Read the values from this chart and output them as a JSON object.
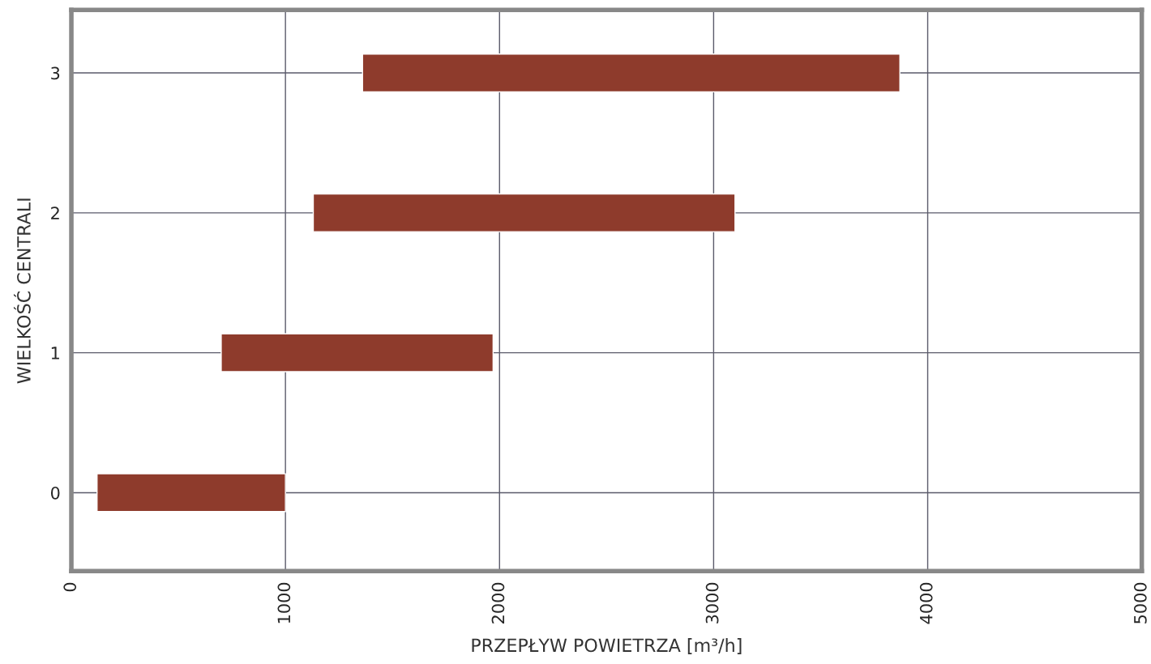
{
  "chart_data": {
    "type": "bar",
    "orientation": "horizontal",
    "categories": [
      "3",
      "2",
      "1",
      "0"
    ],
    "base": [
      1360,
      1130,
      700,
      120
    ],
    "values": [
      2510,
      1970,
      1270,
      880
    ],
    "color": "#8e3b2c",
    "xlim": [
      0,
      5000
    ],
    "xticks": [
      0,
      1000,
      2000,
      3000,
      4000,
      5000
    ],
    "xlabel": "PRZEPŁYW POWIETRZA [m³/h]",
    "ylabel": "WIELKOŚĆ CENTRALI",
    "grid": true,
    "legend": false
  }
}
